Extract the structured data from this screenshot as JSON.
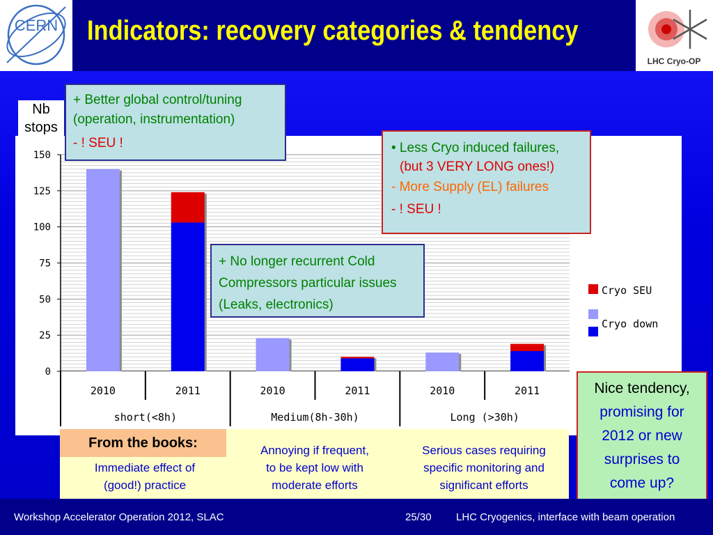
{
  "title": "Indicators: recovery categories & tendency",
  "logos": {
    "cern": "CERN",
    "cryo": "LHC Cryo-OP"
  },
  "nb_stops": [
    "Nb",
    "stops"
  ],
  "colors": {
    "cryo_seu": "#dd0000",
    "cryo_down": "#0000ee",
    "y2010": "#9999ff",
    "title": "#ffff00"
  },
  "box1": {
    "line1": "+ Better global control/tuning",
    "line2": "(operation, instrumentation)",
    "line3": "- ! SEU !"
  },
  "box2": {
    "line1": "• Less Cryo induced failures,",
    "line2": "(but 3 VERY LONG ones!)",
    "line3": "- More Supply (EL) failures",
    "line4": "- ! SEU !"
  },
  "box3": {
    "line1": "+ No longer recurrent Cold",
    "line2": "Compressors particular issues",
    "line3": "(Leaks, electronics)"
  },
  "books": {
    "label": "From the books:",
    "short": [
      "Immediate effect of",
      "(good!) practice"
    ],
    "medium": [
      "Annoying if frequent,",
      "to be kept low with",
      "moderate efforts"
    ],
    "long": [
      "Serious cases requiring",
      "specific monitoring and",
      "significant efforts"
    ]
  },
  "nice": [
    "Nice tendency,",
    "promising for",
    "2012 or new",
    "surprises to",
    "come up?"
  ],
  "footer": {
    "left": "Workshop Accelerator Operation 2012, SLAC",
    "page": "25/30",
    "right": "LHC Cryogenics, interface with beam operation"
  },
  "chart_data": {
    "type": "bar",
    "stacked": true,
    "groups": [
      "short(<8h)",
      "Medium(8h-30h)",
      "Long (>30h)"
    ],
    "categories": [
      "2010",
      "2011",
      "2010",
      "2011",
      "2010",
      "2011"
    ],
    "series": [
      {
        "name": "Cryo down",
        "values": [
          140,
          103,
          23,
          9,
          13,
          14
        ]
      },
      {
        "name": "Cryo SEU",
        "values": [
          0,
          21,
          0,
          1,
          0,
          5
        ]
      }
    ],
    "yticks": [
      0,
      25,
      50,
      75,
      100,
      125,
      150
    ],
    "ylim": [
      0,
      150
    ],
    "grid": true,
    "legend": "right"
  }
}
